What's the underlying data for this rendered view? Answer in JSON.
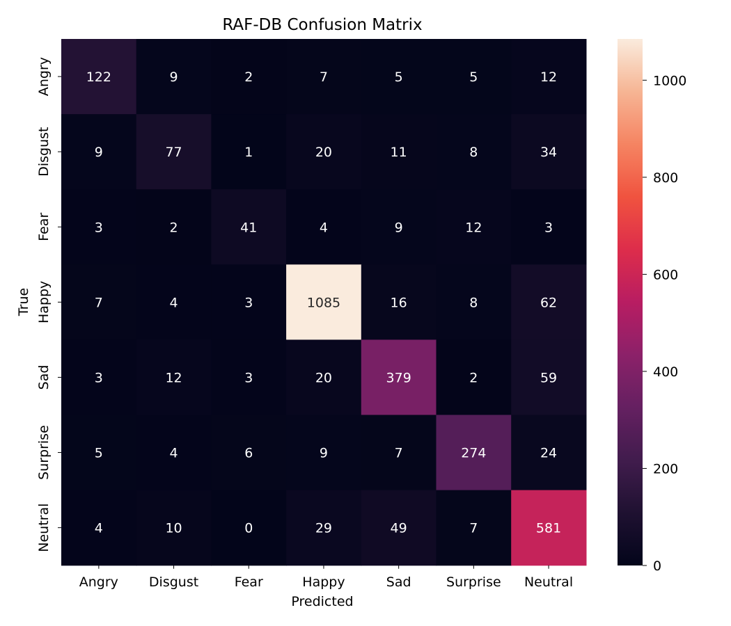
{
  "chart_data": {
    "type": "heatmap",
    "title": "RAF-DB Confusion Matrix",
    "xlabel": "Predicted",
    "ylabel": "True",
    "x_categories": [
      "Angry",
      "Disgust",
      "Fear",
      "Happy",
      "Sad",
      "Surprise",
      "Neutral"
    ],
    "y_categories": [
      "Angry",
      "Disgust",
      "Fear",
      "Happy",
      "Sad",
      "Surprise",
      "Neutral"
    ],
    "values": [
      [
        122,
        9,
        2,
        7,
        5,
        5,
        12
      ],
      [
        9,
        77,
        1,
        20,
        11,
        8,
        34
      ],
      [
        3,
        2,
        41,
        4,
        9,
        12,
        3
      ],
      [
        7,
        4,
        3,
        1085,
        16,
        8,
        62
      ],
      [
        3,
        12,
        3,
        20,
        379,
        2,
        59
      ],
      [
        5,
        4,
        6,
        9,
        7,
        274,
        24
      ],
      [
        4,
        10,
        0,
        29,
        49,
        7,
        581
      ]
    ],
    "color_range": [
      0,
      1085
    ],
    "colorbar_ticks": [
      0,
      200,
      400,
      600,
      800,
      1000
    ],
    "colormap": "rocket",
    "colorbar": true,
    "grid": false
  }
}
